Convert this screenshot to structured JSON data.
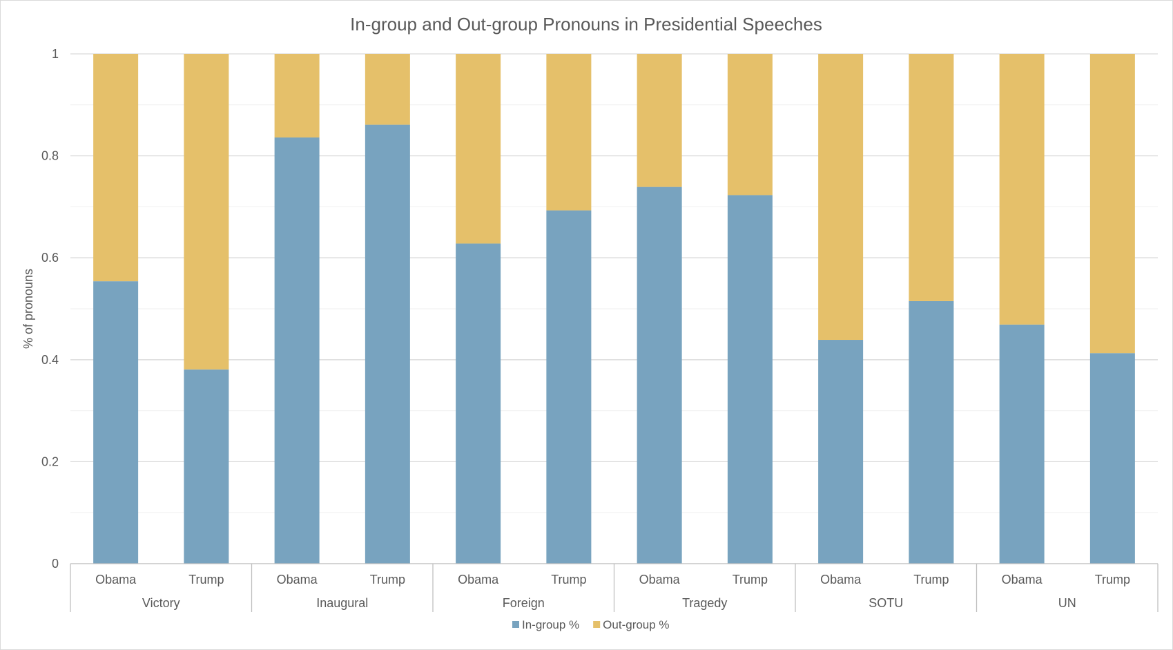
{
  "chart_data": {
    "type": "bar",
    "stacked": true,
    "title": "In-group and Out-group Pronouns in Presidential Speeches",
    "xlabel": "",
    "ylabel": "% of pronouns",
    "ylim": [
      0,
      1
    ],
    "yticks": [
      "0",
      "0.2",
      "0.4",
      "0.6",
      "0.8",
      "1"
    ],
    "grid": true,
    "legend_position": "bottom",
    "groups": [
      "Victory",
      "Inaugural",
      "Foreign",
      "Tragedy",
      "SOTU",
      "UN"
    ],
    "categories": [
      "Obama",
      "Trump",
      "Obama",
      "Trump",
      "Obama",
      "Trump",
      "Obama",
      "Trump",
      "Obama",
      "Trump",
      "Obama",
      "Trump"
    ],
    "series": [
      {
        "name": "In-group %",
        "color": "#78a3bf",
        "values": [
          0.554,
          0.381,
          0.836,
          0.861,
          0.628,
          0.693,
          0.739,
          0.723,
          0.439,
          0.515,
          0.469,
          0.413
        ]
      },
      {
        "name": "Out-group %",
        "color": "#e5c06a",
        "values": [
          0.446,
          0.619,
          0.164,
          0.139,
          0.372,
          0.307,
          0.261,
          0.277,
          0.561,
          0.485,
          0.531,
          0.587
        ]
      }
    ]
  }
}
